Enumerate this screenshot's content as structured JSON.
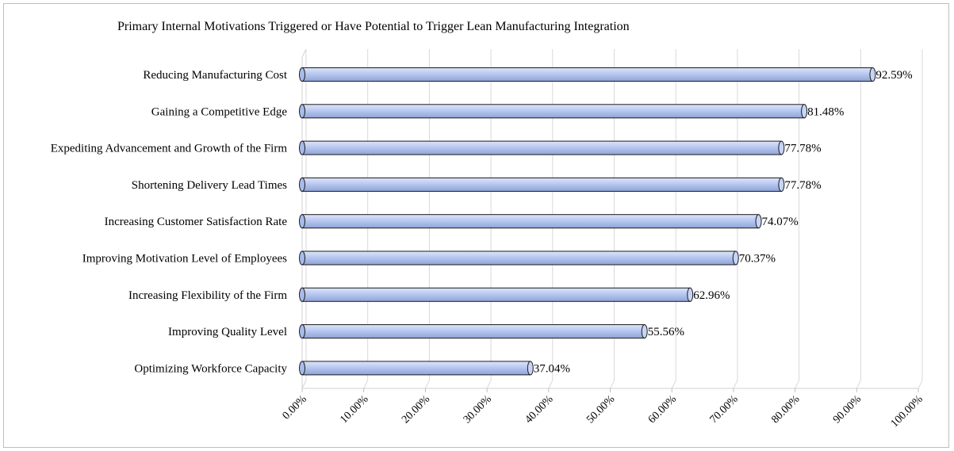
{
  "chart_data": {
    "type": "bar",
    "orientation": "horizontal",
    "style": "3d-cylinder",
    "title": "Primary Internal Motivations Triggered or Have Potential to Trigger Lean Manufacturing Integration",
    "xlabel": "",
    "ylabel": "",
    "xlim": [
      0,
      100
    ],
    "grid": true,
    "legend": "none",
    "bar_color": "#b8c8f0",
    "categories": [
      "Reducing Manufacturing Cost",
      "Gaining a Competitive Edge",
      "Expediting Advancement and Growth of the Firm",
      "Shortening Delivery Lead Times",
      "Increasing Customer Satisfaction Rate",
      "Improving Motivation Level of Employees",
      "Increasing Flexibility of the Firm",
      "Improving Quality Level",
      "Optimizing Workforce Capacity"
    ],
    "values": [
      92.59,
      81.48,
      77.78,
      77.78,
      74.07,
      70.37,
      62.96,
      55.56,
      37.04
    ],
    "value_labels": [
      "92.59%",
      "81.48%",
      "77.78%",
      "77.78%",
      "74.07%",
      "70.37%",
      "62.96%",
      "55.56%",
      "37.04%"
    ],
    "ticks": [
      0,
      10,
      20,
      30,
      40,
      50,
      60,
      70,
      80,
      90,
      100
    ],
    "tick_labels": [
      "0.00%",
      "10.00%",
      "20.00%",
      "30.00%",
      "40.00%",
      "50.00%",
      "60.00%",
      "70.00%",
      "80.00%",
      "90.00%",
      "100.00%"
    ]
  }
}
